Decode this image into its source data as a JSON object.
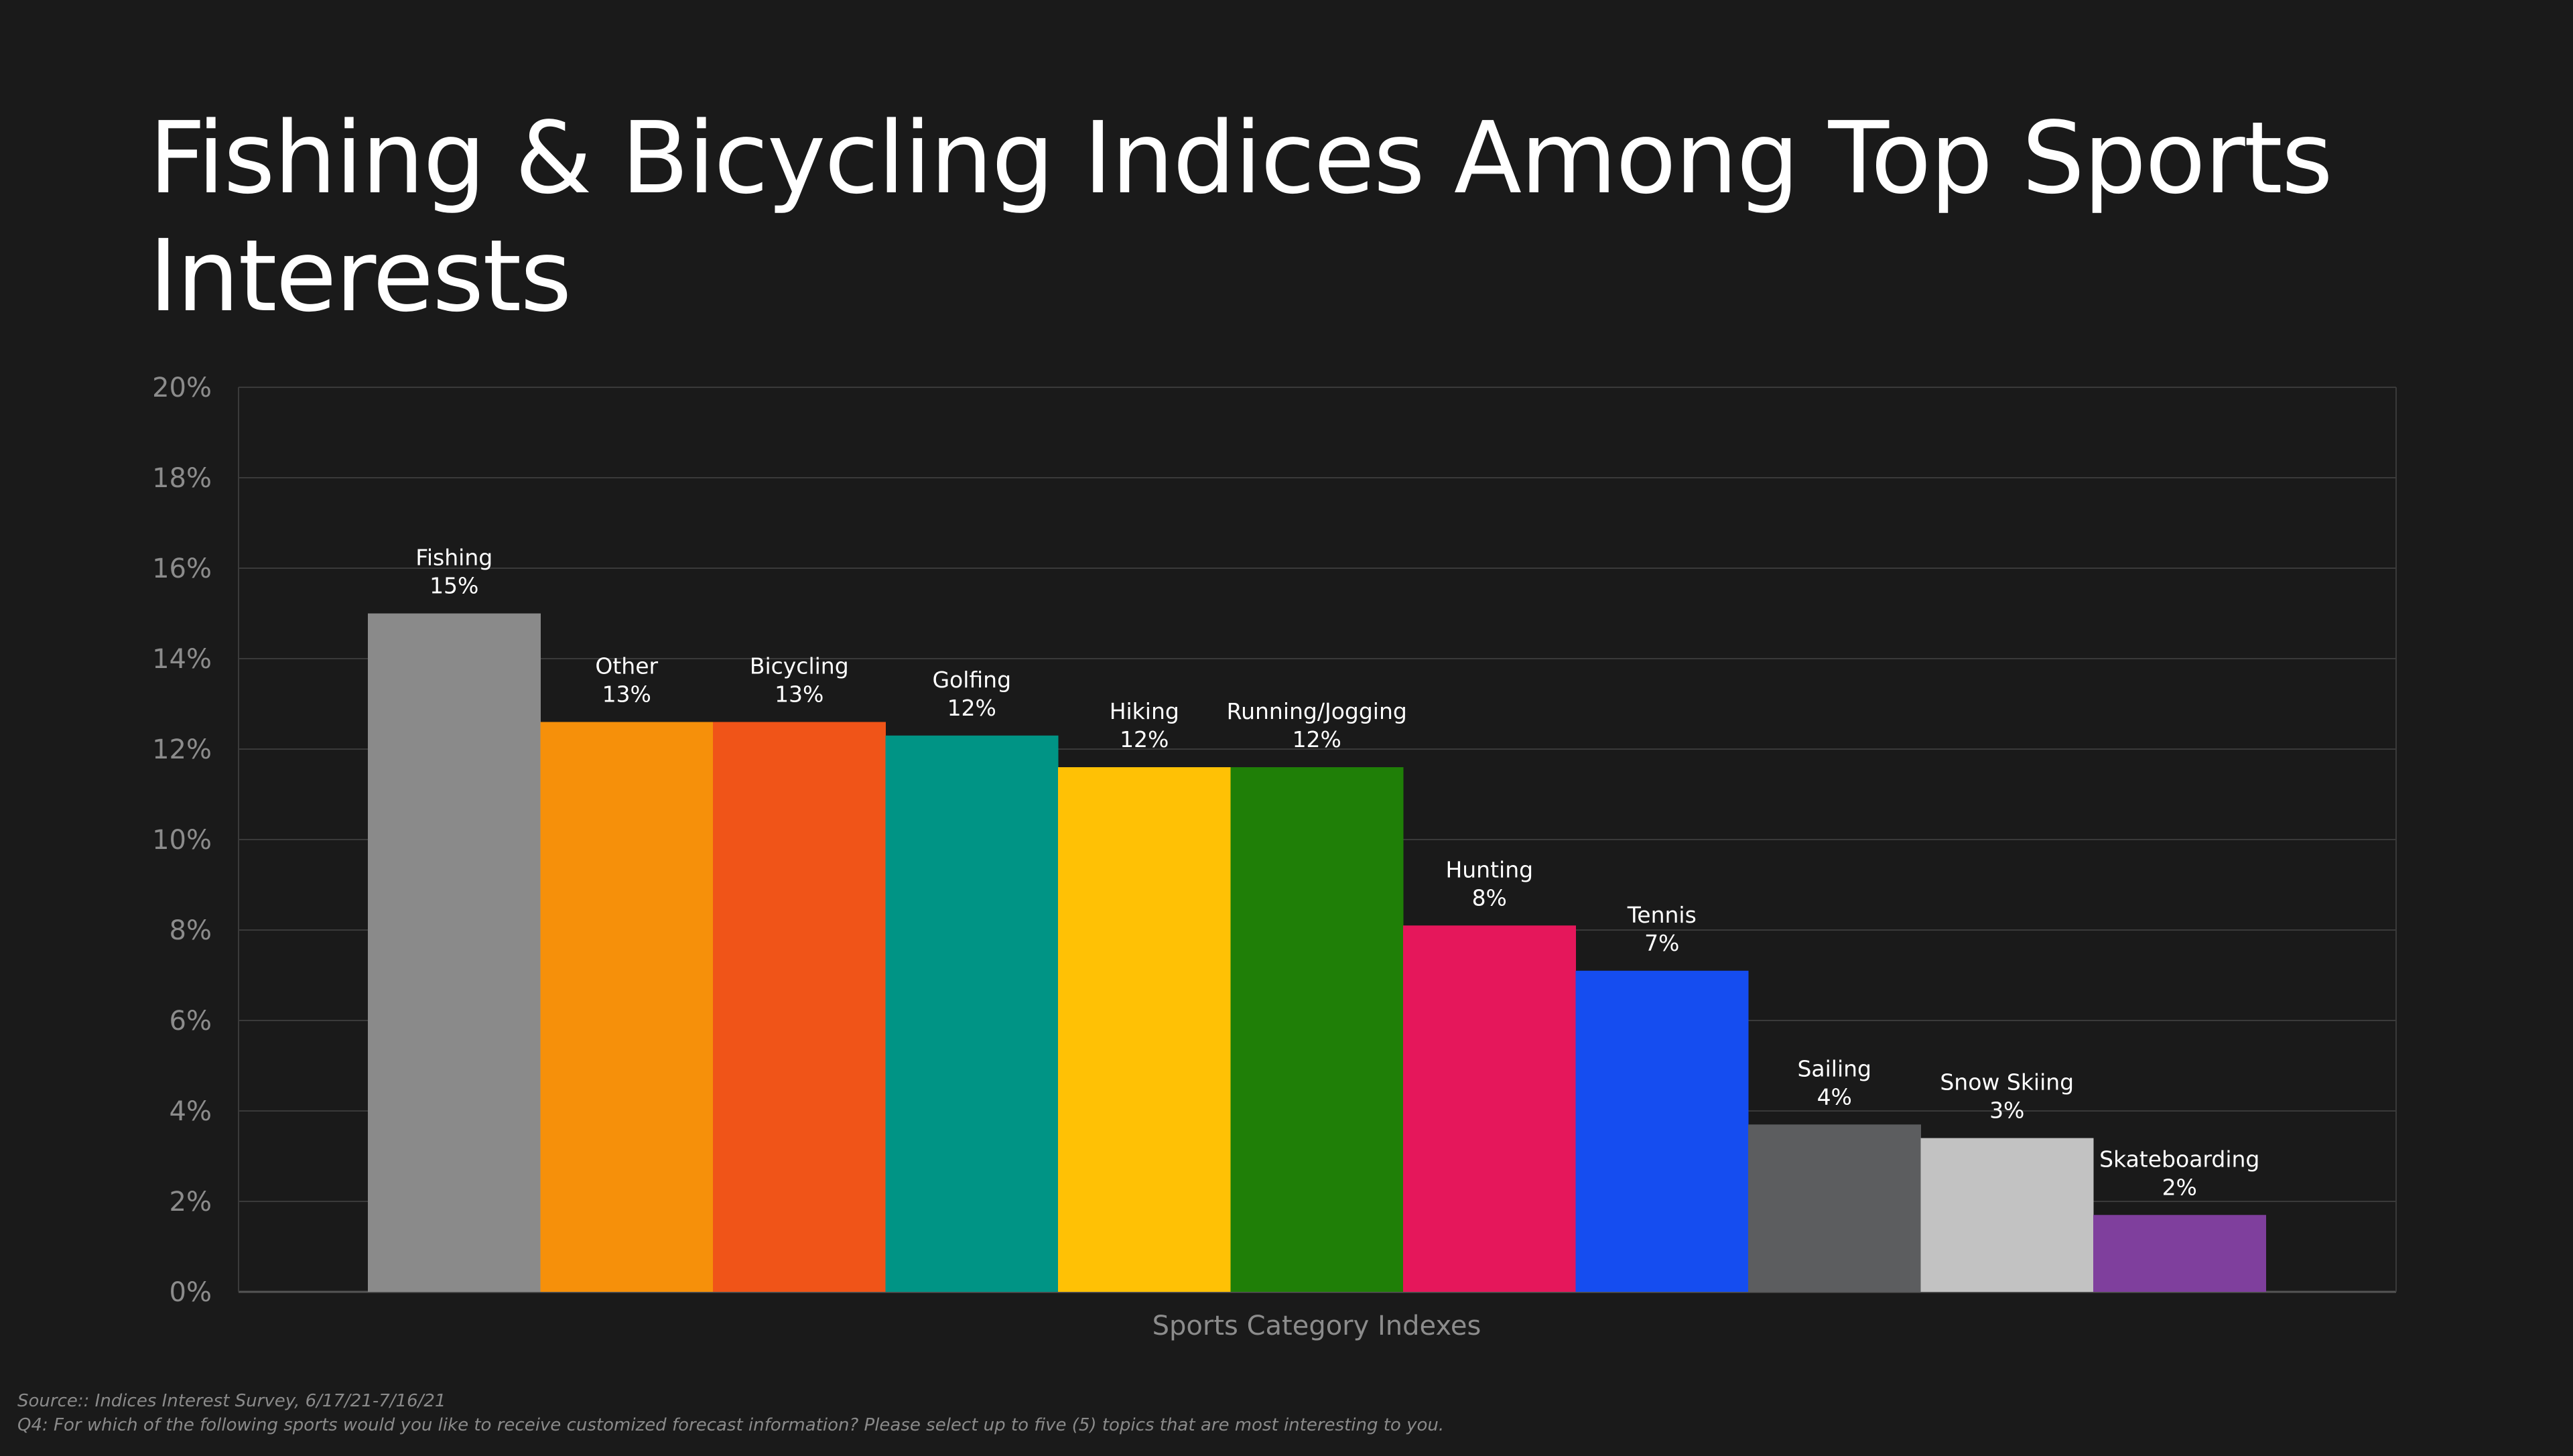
{
  "page": {
    "title": "Fishing & Bicycling Indices Among Top Sports Interests",
    "footnote_source": "Source:: Indices Interest Survey, 6/17/21-7/16/21",
    "footnote_question": "Q4: For which of the following sports would you like to receive customized forecast information? Please select up to five (5) topics that are most interesting to you."
  },
  "colors": {
    "background": "#1a1a1a",
    "gridline": "#3a3a3a",
    "axis": "#555555",
    "tick_label": "#8c8c8c",
    "bar_label": "#ffffff"
  },
  "chart_data": {
    "type": "bar",
    "title": "Fishing & Bicycling Indices Among Top Sports Interests",
    "xlabel": "Sports Category Indexes",
    "ylabel": "",
    "ylim": [
      0,
      20
    ],
    "yticks": [
      0,
      2,
      4,
      6,
      8,
      10,
      12,
      14,
      16,
      18,
      20
    ],
    "ytick_labels": [
      "0%",
      "2%",
      "4%",
      "6%",
      "8%",
      "10%",
      "12%",
      "14%",
      "16%",
      "18%",
      "20%"
    ],
    "grid": true,
    "legend": "none",
    "categories": [
      "Fishing",
      "Other",
      "Bicycling",
      "Golfing",
      "Hiking",
      "Running/Jogging",
      "Hunting",
      "Tennis",
      "Sailing",
      "Snow Skiing",
      "Skateboarding"
    ],
    "values": [
      15.0,
      12.6,
      12.6,
      12.3,
      11.6,
      11.6,
      8.1,
      7.1,
      3.7,
      3.4,
      1.7
    ],
    "data_labels": [
      "15%",
      "13%",
      "13%",
      "12%",
      "12%",
      "12%",
      "8%",
      "7%",
      "4%",
      "3%",
      "2%"
    ],
    "bar_colors": [
      "#8a8a8a",
      "#f6900a",
      "#f05418",
      "#009485",
      "#ffc105",
      "#1f7f07",
      "#e5175b",
      "#154df0",
      "#5c5d5f",
      "#c2c2c2",
      "#7f3f9d"
    ]
  }
}
